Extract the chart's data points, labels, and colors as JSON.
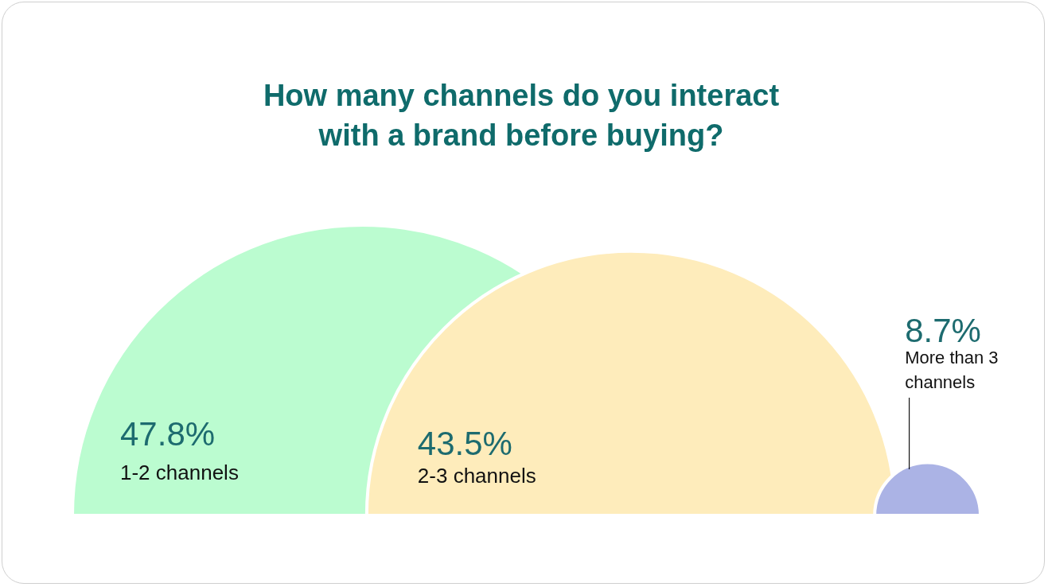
{
  "chart_data": {
    "type": "other",
    "title": "How many channels do you interact with a brand before buying?",
    "categories": [
      "1-2 channels",
      "2-3 channels",
      "More than 3 channels"
    ],
    "values": [
      47.8,
      43.5,
      8.7
    ],
    "value_labels": [
      "47.8%",
      "43.5%",
      "8.7%"
    ],
    "colors": [
      "#bbfcd0",
      "#feecbb",
      "#abb3e5"
    ]
  }
}
